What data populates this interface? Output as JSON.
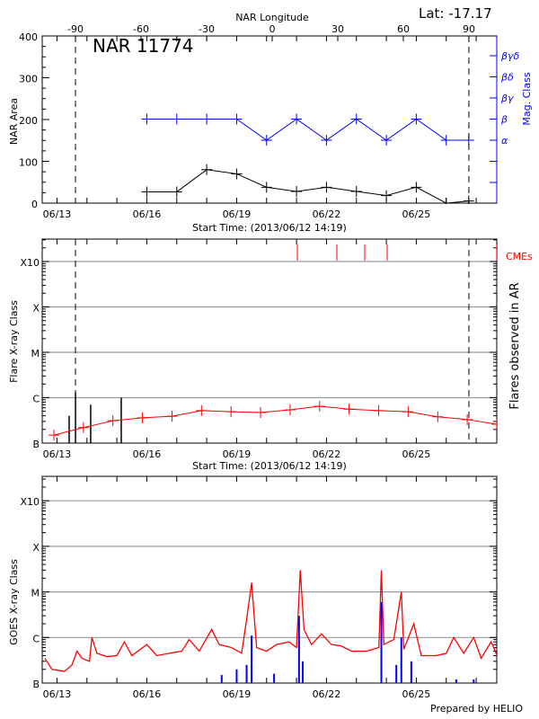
{
  "header": {
    "longitude_label": "NAR Longitude",
    "latitude": "Lat: -17.17",
    "region": "NAR 11774",
    "start_time_label": "Start Time: (2013/06/12 14:19)",
    "footer": "Prepared by HELIO"
  },
  "colors": {
    "area": "#000000",
    "mag_class": "#0000ff",
    "flare_trend": "#ff0000",
    "cme": "#ff0000",
    "goes_long": "#ff0000",
    "goes_short": "#0000ff",
    "grid": "#9a9a9a"
  },
  "chart_data": [
    {
      "type": "line",
      "title": "NAR 11774",
      "xlabel": "Start Time: (2013/06/12 14:19)",
      "ylabel": "NAR Area",
      "y2label": "Mag. Class",
      "top_axis_label": "NAR Longitude",
      "top_ticks": [
        "-90",
        "-60",
        "-30",
        "0",
        "30",
        "60",
        "90"
      ],
      "x_ticks": [
        "06/13",
        "06/16",
        "06/19",
        "06/22",
        "06/25"
      ],
      "ylim": [
        0,
        400
      ],
      "y_ticks": [
        "0",
        "100",
        "200",
        "300",
        "400"
      ],
      "y2_ticks": [
        "α",
        "β",
        "βγ",
        "βδ",
        "βγδ"
      ],
      "limb_longitudes": [
        -90,
        90
      ],
      "series": [
        {
          "times": [
            "06/16 00:00",
            "06/17 00:00",
            "06/18 00:00",
            "06/19 00:00",
            "06/20 00:00",
            "06/21 00:00",
            "06/22 00:00",
            "06/23 00:00",
            "06/24 00:00",
            "06/25 00:00",
            "06/26 00:00",
            "06/26 18:00"
          ],
          "values": [
            27,
            27,
            80,
            70,
            38,
            28,
            38,
            28,
            18,
            38,
            0,
            5
          ]
        },
        {
          "times": [
            "06/16 00:00",
            "06/17 00:00",
            "06/18 00:00",
            "06/19 00:00",
            "06/20 00:00",
            "06/21 00:00",
            "06/22 00:00",
            "06/23 00:00",
            "06/24 00:00",
            "06/25 00:00",
            "06/26 00:00",
            "06/26 18:00"
          ],
          "values": [
            "β",
            "β",
            "β",
            "β",
            "α",
            "β",
            "α",
            "β",
            "α",
            "β",
            "α",
            "α"
          ]
        }
      ]
    },
    {
      "type": "line",
      "xlabel": "Start Time: (2013/06/12 14:19)",
      "ylabel": "Flare X-ray Class",
      "y2label": "Flares observed in AR",
      "x_ticks": [
        "06/13",
        "06/16",
        "06/19",
        "06/22",
        "06/25"
      ],
      "y_ticks": [
        "B",
        "C",
        "M",
        "X",
        "X10"
      ],
      "y_scale": "log",
      "grid": true,
      "cme_label": "CMEs",
      "cmes": [
        "06/21 00:40",
        "06/22 08:20",
        "06/23 06:40",
        "06/24 00:40",
        "06/27 16:30"
      ],
      "flares": [
        {
          "time": "06/13 09:45",
          "flux": 4e-07
        },
        {
          "time": "06/13 14:50",
          "flux": 1.3e-06
        },
        {
          "time": "06/14 03:00",
          "flux": 7e-07
        },
        {
          "time": "06/15 03:30",
          "flux": 1e-06
        }
      ],
      "trend": {
        "times": [
          "06/12 21:30",
          "06/13 21:10",
          "06/14 20:50",
          "06/15 20:30",
          "06/16 20:10",
          "06/17 19:50",
          "06/18 19:30",
          "06/19 19:10",
          "06/20 18:50",
          "06/21 18:30",
          "06/22 18:10",
          "06/23 17:50",
          "06/24 17:30",
          "06/25 17:10",
          "06/26 16:50",
          "06/27 16:30"
        ],
        "flux": [
          1.5e-07,
          2.2e-07,
          3.1e-07,
          3.6e-07,
          3.9e-07,
          5.2e-07,
          4.9e-07,
          4.7e-07,
          5.4e-07,
          6.5e-07,
          5.6e-07,
          5.2e-07,
          4.9e-07,
          3.8e-07,
          3.3e-07,
          2.6e-07
        ]
      }
    },
    {
      "type": "line",
      "ylabel": "GOES X-ray Class",
      "x_ticks": [
        "06/13",
        "06/16",
        "06/19",
        "06/22",
        "06/25"
      ],
      "y_ticks": [
        "B",
        "C",
        "M",
        "X",
        "X10"
      ],
      "y_scale": "log",
      "grid": true,
      "long_channel": {
        "times": [
          "06/12 14:19",
          "06/12 20:00",
          "06/13 06:00",
          "06/13 12:00",
          "06/13 16:00",
          "06/13 20:00",
          "06/14 02:00",
          "06/14 04:00",
          "06/14 08:00",
          "06/14 16:00",
          "06/15 00:00",
          "06/15 06:00",
          "06/15 12:00",
          "06/16 00:00",
          "06/16 08:00",
          "06/16 18:00",
          "06/17 04:00",
          "06/17 10:00",
          "06/17 18:00",
          "06/18 04:00",
          "06/18 10:00",
          "06/18 20:00",
          "06/19 04:00",
          "06/19 08:00",
          "06/19 12:00",
          "06/19 16:00",
          "06/20 00:00",
          "06/20 08:00",
          "06/20 18:00",
          "06/21 00:00",
          "06/21 03:00",
          "06/21 06:00",
          "06/21 12:00",
          "06/21 20:00",
          "06/22 04:00",
          "06/22 12:00",
          "06/22 20:00",
          "06/23 08:00",
          "06/23 18:00",
          "06/23 20:00",
          "06/23 22:00",
          "06/24 06:00",
          "06/24 12:00",
          "06/24 14:00",
          "06/24 22:00",
          "06/25 04:00",
          "06/25 16:00",
          "06/26 00:00",
          "06/26 06:00",
          "06/26 14:00",
          "06/26 22:00",
          "06/27 04:00",
          "06/27 12:00",
          "06/27 20:00"
        ],
        "flux": [
          3.5e-07,
          2e-07,
          1.8e-07,
          2.5e-07,
          5e-07,
          3.5e-07,
          3e-07,
          1e-06,
          4.5e-07,
          3.8e-07,
          4e-07,
          8e-07,
          4e-07,
          7e-07,
          4e-07,
          4.5e-07,
          5e-07,
          9e-07,
          5e-07,
          1.5e-06,
          7e-07,
          6e-07,
          4.5e-07,
          2.5e-06,
          1.6e-05,
          6e-07,
          5e-07,
          7e-07,
          8e-07,
          6e-07,
          3e-05,
          1.5e-06,
          7e-07,
          1.2e-06,
          7e-07,
          6.5e-07,
          5e-07,
          5e-07,
          6e-07,
          3e-05,
          7e-07,
          9e-07,
          1e-05,
          5.5e-07,
          2e-06,
          4e-07,
          4e-07,
          4.5e-07,
          1e-06,
          4.5e-07,
          1e-06,
          3.5e-07,
          8e-07,
          2.5e-07
        ]
      },
      "short_channel": {
        "times": [
          "06/18 12:00",
          "06/19 00:00",
          "06/19 08:00",
          "06/19 12:00",
          "06/20 06:00",
          "06/21 02:00",
          "06/21 05:00",
          "06/23 20:00",
          "06/24 08:00",
          "06/24 12:00",
          "06/24 20:00",
          "06/26 08:00",
          "06/26 22:00"
        ],
        "flux": [
          1.5e-07,
          2e-07,
          2.5e-07,
          1.1e-06,
          1.6e-07,
          3e-06,
          3e-07,
          6e-06,
          2.5e-07,
          1e-06,
          3e-07,
          1.2e-07,
          1.2e-07
        ]
      }
    }
  ]
}
